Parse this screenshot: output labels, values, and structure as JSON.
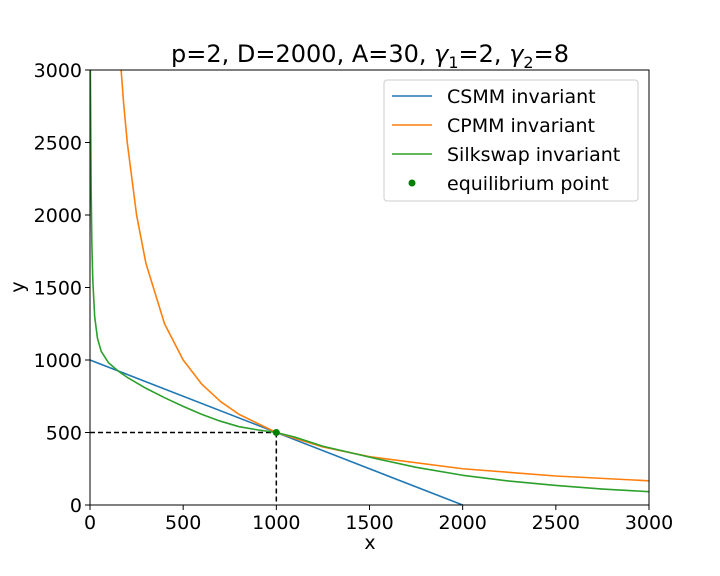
{
  "chart_data": {
    "type": "line",
    "title_parts": {
      "a": "p=2, D=2000, A=30, ",
      "g1": "γ",
      "g1sub": "1",
      "b": "=2, ",
      "g2": "γ",
      "g2sub": "2",
      "c": "=8"
    },
    "xlabel": "x",
    "ylabel": "y",
    "xlim": [
      0,
      3000
    ],
    "ylim": [
      0,
      3000
    ],
    "xticks": [
      0,
      500,
      1000,
      1500,
      2000,
      2500,
      3000
    ],
    "yticks": [
      0,
      500,
      1000,
      1500,
      2000,
      2500,
      3000
    ],
    "grid": false,
    "legend_position": "top-right",
    "series": [
      {
        "name": "CSMM invariant",
        "color": "#1f77b4",
        "x": [
          0,
          2000
        ],
        "y": [
          1000,
          0
        ]
      },
      {
        "name": "CPMM invariant",
        "color": "#ff7f0e",
        "x": [
          167,
          180,
          200,
          250,
          300,
          400,
          500,
          600,
          700,
          800,
          1000,
          1250,
          1500,
          2000,
          2500,
          3000
        ],
        "y": [
          3000,
          2778,
          2500,
          2000,
          1667,
          1250,
          1000,
          833,
          714,
          625,
          500,
          400,
          333,
          250,
          200,
          167
        ]
      },
      {
        "name": "Silkswap invariant",
        "color": "#2ca02c",
        "x": [
          2,
          4,
          6,
          10,
          15,
          25,
          40,
          60,
          100,
          150,
          200,
          300,
          400,
          500,
          600,
          700,
          800,
          900,
          1000,
          1100,
          1250,
          1500,
          1750,
          2000,
          2250,
          2500,
          2750,
          3000
        ],
        "y": [
          3000,
          2600,
          2200,
          1800,
          1550,
          1300,
          1150,
          1060,
          980,
          925,
          880,
          805,
          740,
          680,
          625,
          578,
          540,
          518,
          500,
          468,
          405,
          330,
          260,
          205,
          165,
          135,
          110,
          92
        ]
      }
    ],
    "equilibrium_point": {
      "name": "equilibrium point",
      "color": "#007f00",
      "x": 1000,
      "y": 500
    },
    "reference_lines": {
      "style": "dashed",
      "color": "#000000",
      "point": [
        1000,
        500
      ]
    }
  }
}
